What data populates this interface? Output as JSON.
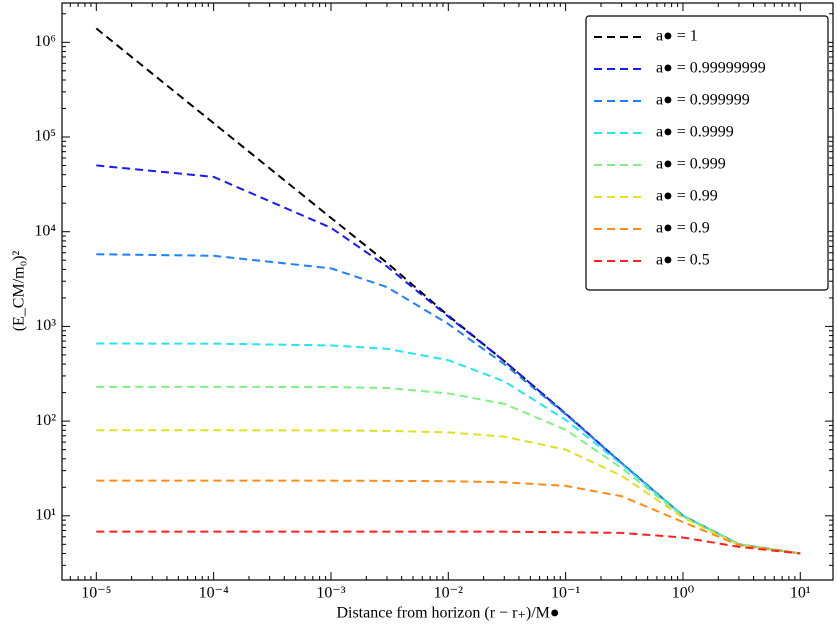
{
  "chart_data": {
    "type": "line",
    "x_label": "Distance from horizon (r − r₊)/M●",
    "y_label": "(E_CM/m₀)²",
    "x": [
      1e-05,
      0.0001,
      0.001,
      0.003,
      0.01,
      0.03,
      0.1,
      0.3,
      1,
      3,
      10
    ],
    "series": [
      {
        "name": "a● = 1",
        "color": "#000000",
        "values": [
          1400000,
          140000,
          14000,
          4700,
          1300,
          430,
          120,
          36,
          10,
          5,
          4
        ]
      },
      {
        "name": "a● = 0.99999999",
        "color": "#1a1aff",
        "values": [
          50100,
          37900,
          11000,
          4300,
          1270,
          430,
          120,
          36,
          10,
          5,
          4
        ]
      },
      {
        "name": "a● = 0.999999",
        "color": "#1e80ff",
        "values": [
          5780,
          5570,
          4100,
          2600,
          1060,
          400,
          118,
          36,
          10,
          5,
          4
        ]
      },
      {
        "name": "a● = 0.9999",
        "color": "#22e6f0",
        "values": [
          660,
          657,
          630,
          580,
          440,
          263,
          103,
          35,
          10,
          5,
          4
        ]
      },
      {
        "name": "a● = 0.999",
        "color": "#80f080",
        "values": [
          230,
          230,
          229,
          224,
          196,
          152,
          81,
          32,
          9.8,
          5,
          4
        ]
      },
      {
        "name": "a● = 0.99",
        "color": "#e0e020",
        "values": [
          80,
          80,
          79.6,
          78.8,
          76,
          68.5,
          50,
          26.5,
          9.6,
          4.9,
          4
        ]
      },
      {
        "name": "a● = 0.9",
        "color": "#ff8c1a",
        "values": [
          23.5,
          23.5,
          23.5,
          23.4,
          23.2,
          22.6,
          20.7,
          16.1,
          8.6,
          4.9,
          4
        ]
      },
      {
        "name": "a● = 0.5",
        "color": "#ff2020",
        "values": [
          6.8,
          6.8,
          6.8,
          6.8,
          6.8,
          6.8,
          6.7,
          6.6,
          5.9,
          4.7,
          4
        ]
      }
    ],
    "xlim": [
      5.1e-06,
      19
    ],
    "ylim": [
      2.1,
      2600000
    ],
    "log_x": true,
    "log_y": true,
    "xticks": [
      {
        "value": 1e-05,
        "label": "10⁻⁵"
      },
      {
        "value": 0.0001,
        "label": "10⁻⁴"
      },
      {
        "value": 0.001,
        "label": "10⁻³"
      },
      {
        "value": 0.01,
        "label": "10⁻²"
      },
      {
        "value": 0.1,
        "label": "10⁻¹"
      },
      {
        "value": 1,
        "label": "10⁰"
      },
      {
        "value": 10,
        "label": "10¹"
      }
    ],
    "yticks": [
      {
        "value": 10,
        "label": "10¹"
      },
      {
        "value": 100,
        "label": "10²"
      },
      {
        "value": 1000,
        "label": "10³"
      },
      {
        "value": 10000,
        "label": "10⁴"
      },
      {
        "value": 100000,
        "label": "10⁵"
      },
      {
        "value": 1000000,
        "label": "10⁶"
      }
    ],
    "grid": false,
    "legend": "upper right"
  }
}
